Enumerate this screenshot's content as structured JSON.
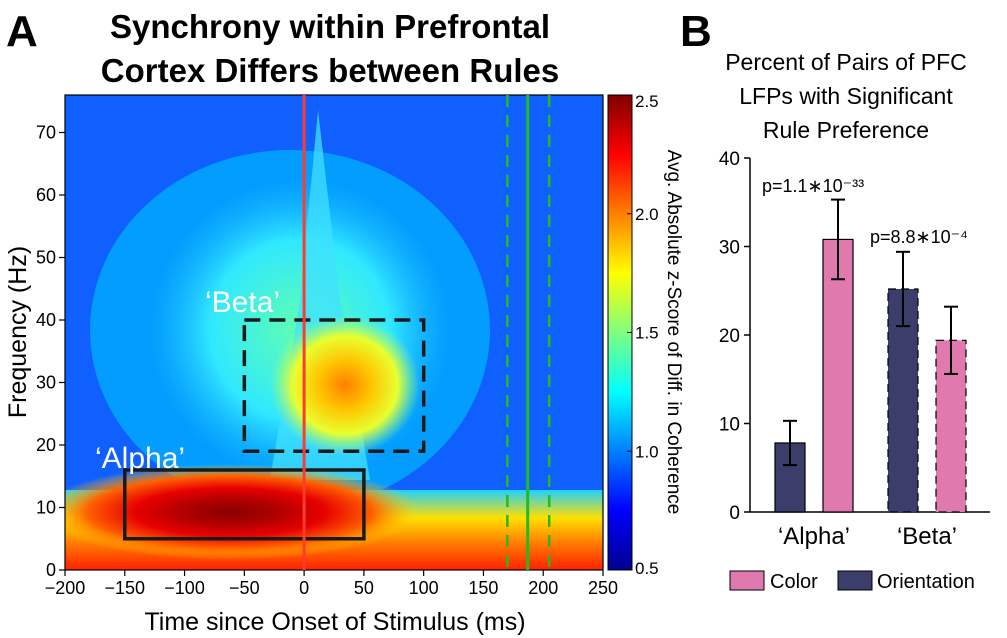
{
  "panel_a": {
    "panel_letter": "A",
    "title_line1": "Synchrony within Prefrontal",
    "title_line2": "Cortex Differs between Rules",
    "xlabel": "Time since Onset of Stimulus (ms)",
    "ylabel": "Frequency (Hz)",
    "colorbar_label": "Avg. Absolute z-Score of Diff. in Coherence",
    "box_beta_label": "‘Beta’",
    "box_alpha_label": "‘Alpha’",
    "colors": {
      "red_line": "#ff3b30",
      "green_line": "#22bb22",
      "box_edge": "#1a1a1a"
    }
  },
  "panel_b": {
    "panel_letter": "B",
    "title_line1": "Percent of Pairs of PFC",
    "title_line2": "LFPs with Significant",
    "title_line3": "Rule Preference",
    "pval_alpha": "p=1.1∗10⁻³³",
    "pval_beta": "p=8.8∗10⁻⁴",
    "legend_color": "Color",
    "legend_orientation": "Orientation",
    "colors": {
      "color_bar": "#e07aae",
      "orientation_bar": "#3b3d6b"
    }
  },
  "chart_data": [
    {
      "type": "heatmap",
      "x_ticks": [
        -200,
        -150,
        -100,
        -50,
        0,
        50,
        100,
        150,
        200,
        250
      ],
      "y_ticks": [
        0,
        10,
        20,
        30,
        40,
        50,
        60,
        70
      ],
      "xlim": [
        -200,
        250
      ],
      "ylim": [
        0,
        76
      ],
      "colorbar_ticks": [
        "0.5",
        "1.0",
        "1.5",
        "2.0",
        "2.5"
      ],
      "colorbar_range": [
        0.5,
        2.5
      ],
      "vertical_lines": [
        {
          "x": 0,
          "style": "solid",
          "color": "red"
        },
        {
          "x": 187,
          "style": "solid",
          "color": "green"
        },
        {
          "x": 170,
          "style": "dashed",
          "color": "green"
        },
        {
          "x": 205,
          "style": "dashed",
          "color": "green"
        }
      ],
      "boxes": [
        {
          "label": "‘Beta’",
          "x": [
            -50,
            100
          ],
          "y": [
            19,
            40
          ],
          "style": "dashed"
        },
        {
          "label": "‘Alpha’",
          "x": [
            -150,
            50
          ],
          "y": [
            5,
            16
          ],
          "style": "solid"
        }
      ]
    },
    {
      "type": "bar",
      "categories": [
        "‘Alpha’",
        "‘Beta’"
      ],
      "series": [
        {
          "name": "Orientation",
          "values": [
            7.8,
            25.2
          ],
          "errors": [
            2.5,
            4.2
          ]
        },
        {
          "name": "Color",
          "values": [
            30.8,
            19.4
          ],
          "errors": [
            4.5,
            3.8
          ]
        }
      ],
      "y_ticks": [
        0,
        10,
        20,
        30,
        40
      ],
      "ylim": [
        0,
        40
      ],
      "legend_position": "bottom"
    }
  ]
}
